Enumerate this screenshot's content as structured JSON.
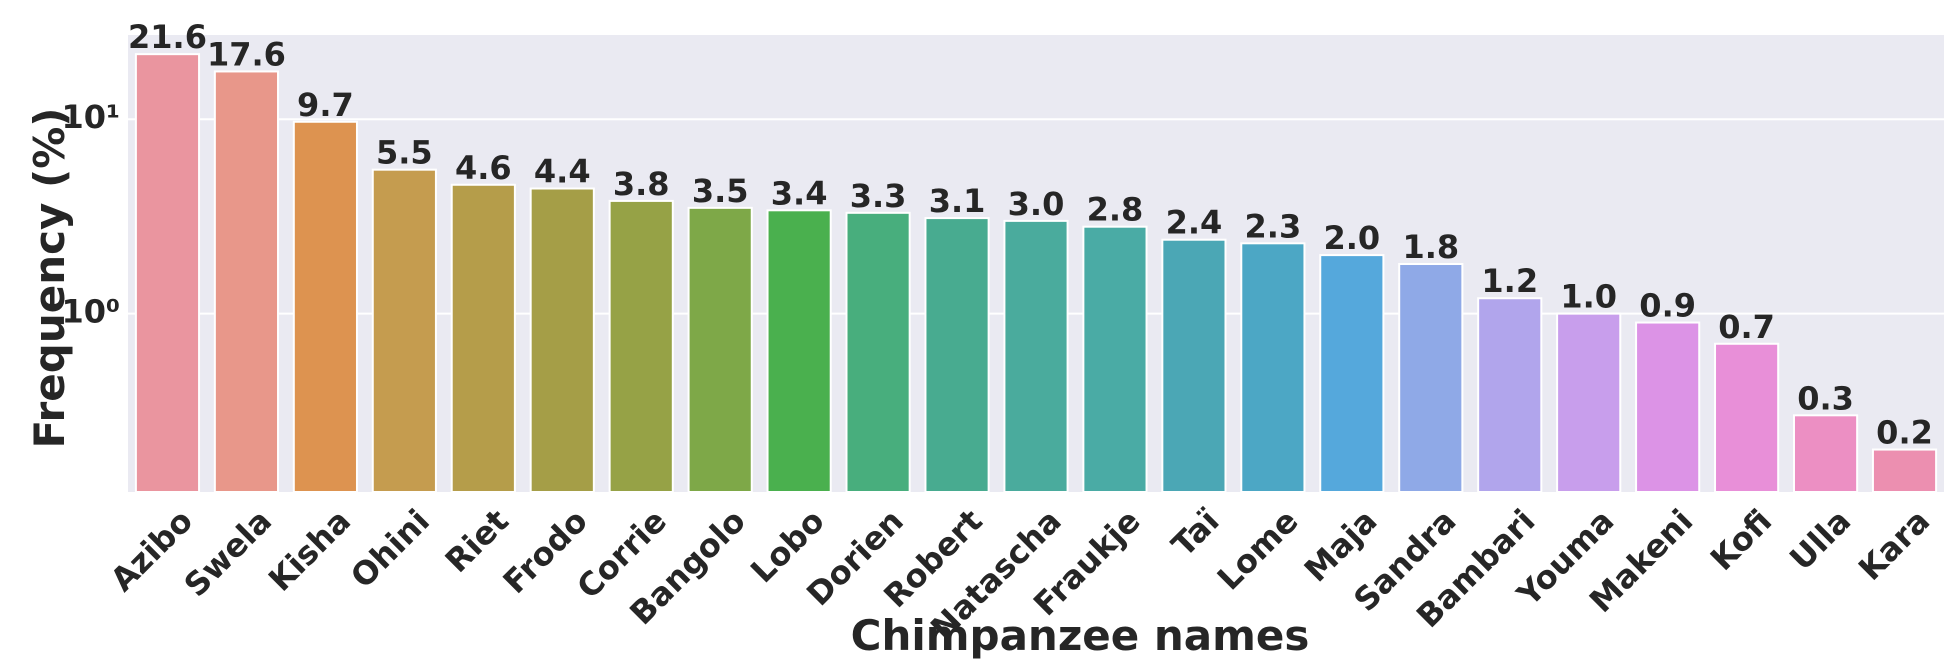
{
  "chart_data": {
    "type": "bar",
    "xlabel": "Chimpanzee names",
    "ylabel": "Frequency (%)",
    "categories": [
      "Azibo",
      "Swela",
      "Kisha",
      "Ohini",
      "Riet",
      "Frodo",
      "Corrie",
      "Bangolo",
      "Lobo",
      "Dorien",
      "Robert",
      "Natascha",
      "Fraukje",
      "Taï",
      "Lome",
      "Maja",
      "Sandra",
      "Bambari",
      "Youma",
      "Makeni",
      "Kofi",
      "Ulla",
      "Kara"
    ],
    "values": [
      21.6,
      17.6,
      9.7,
      5.5,
      4.6,
      4.4,
      3.8,
      3.5,
      3.4,
      3.3,
      3.1,
      3.0,
      2.8,
      2.4,
      2.3,
      2.0,
      1.8,
      1.2,
      1.0,
      0.9,
      0.7,
      0.3,
      0.2
    ],
    "value_labels": [
      "21.6",
      "17.6",
      "9.7",
      "5.5",
      "4.6",
      "4.4",
      "3.8",
      "3.5",
      "3.4",
      "3.3",
      "3.1",
      "3.0",
      "2.8",
      "2.4",
      "2.3",
      "2.0",
      "1.8",
      "1.2",
      "1.0",
      "0.9",
      "0.7",
      "0.3",
      "0.2"
    ],
    "colors": [
      "#ea959f",
      "#e8978a",
      "#dd9350",
      "#c59c4f",
      "#b59d4a",
      "#a59e47",
      "#96a246",
      "#7ea848",
      "#4ab04e",
      "#48ae7d",
      "#48ab90",
      "#4aab9d",
      "#4aaba5",
      "#4ba7b5",
      "#4ca7c5",
      "#55a8dc",
      "#8fa9e7",
      "#b1a5ec",
      "#c89eec",
      "#dc93e6",
      "#e88fd8",
      "#ec8fc3",
      "#ec8fb0"
    ],
    "log_scale": true,
    "ylim": [
      0.121,
      27.1
    ],
    "yticks": [
      {
        "value": 1,
        "label": "10⁰"
      },
      {
        "value": 10,
        "label": "10¹"
      }
    ],
    "grid": true
  }
}
